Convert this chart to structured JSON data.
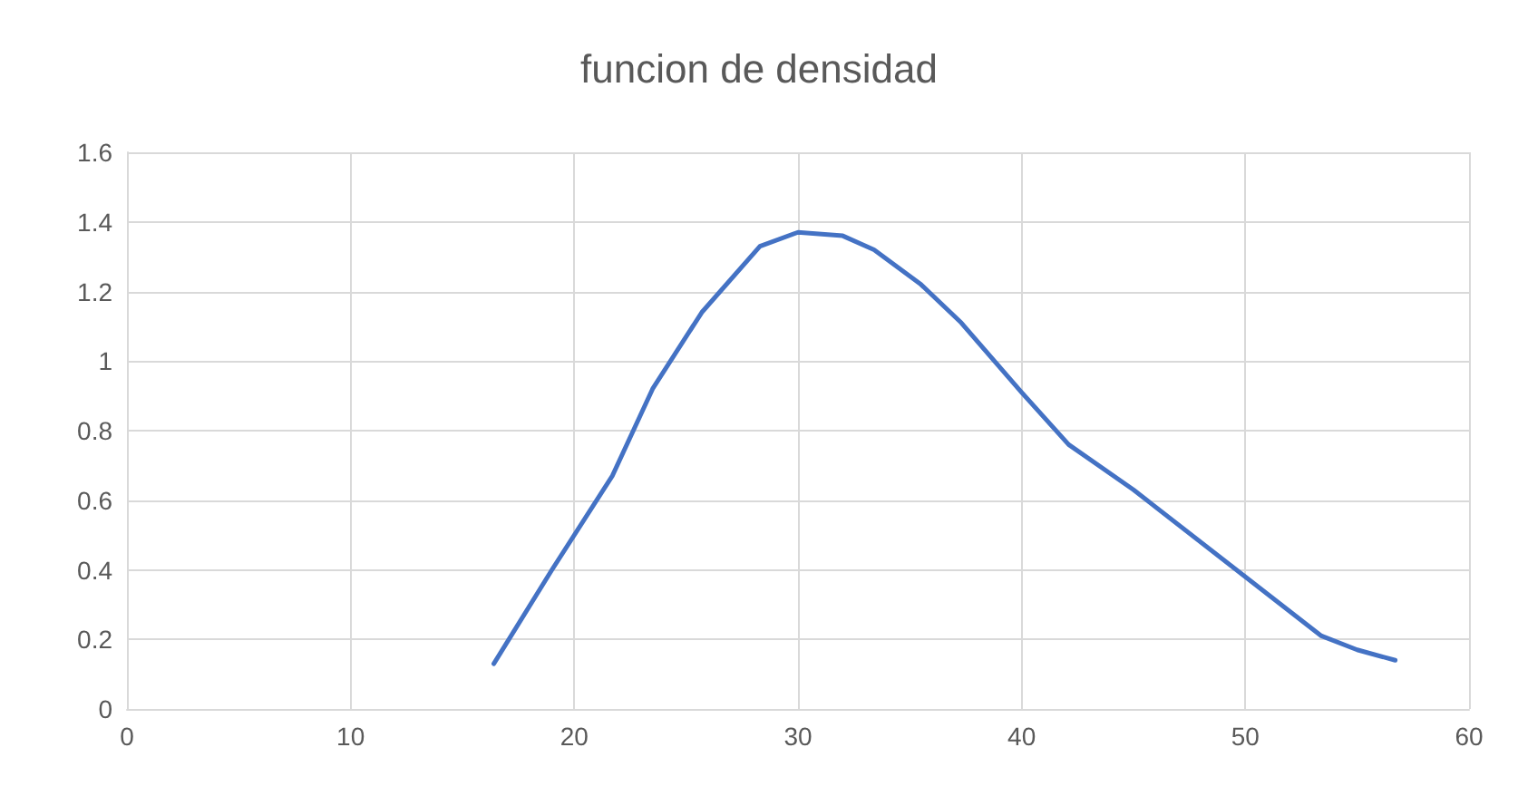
{
  "chart_data": {
    "type": "line",
    "title": "funcion de densidad",
    "x": [
      16.4,
      19,
      21.7,
      23.5,
      25.7,
      28.3,
      30,
      32,
      33.4,
      35.5,
      37.3,
      40,
      42.1,
      45,
      50,
      53.4,
      55,
      56.7
    ],
    "values": [
      0.13,
      0.4,
      0.67,
      0.92,
      1.14,
      1.33,
      1.37,
      1.36,
      1.32,
      1.22,
      1.11,
      0.91,
      0.76,
      0.63,
      0.38,
      0.21,
      0.17,
      0.14
    ],
    "color": "#4472c4",
    "xlim": [
      0,
      60
    ],
    "xticks": [
      0,
      10,
      20,
      30,
      40,
      50,
      60
    ],
    "ylim": [
      0,
      1.6
    ],
    "yticks": [
      0,
      0.2,
      0.4,
      0.6,
      0.8,
      1,
      1.2,
      1.4,
      1.6
    ],
    "grid": true,
    "marker": "none",
    "line_style": "solid"
  }
}
